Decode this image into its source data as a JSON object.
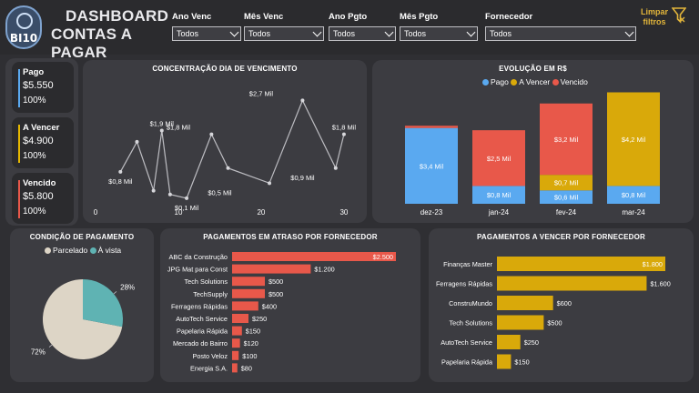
{
  "header": {
    "logo_text": "BI10",
    "title_line1": "DASHBOARD",
    "title_line2": "CONTAS A PAGAR",
    "clear_label": "Limpar filtros"
  },
  "filters": [
    {
      "label": "Ano Venc",
      "value": "Todos"
    },
    {
      "label": "Mês Venc",
      "value": "Todos"
    },
    {
      "label": "Ano Pgto",
      "value": "Todos"
    },
    {
      "label": "Mês Pgto",
      "value": "Todos"
    },
    {
      "label": "Fornecedor",
      "value": "Todos"
    }
  ],
  "kpis": [
    {
      "title": "Pago",
      "value": "$5.550",
      "pct": "100%",
      "color": "#5aa9f0"
    },
    {
      "title": "A Vencer",
      "value": "$4.900",
      "pct": "100%",
      "color": "#e6b800"
    },
    {
      "title": "Vencido",
      "value": "$5.800",
      "pct": "100%",
      "color": "#e8584a"
    }
  ],
  "colors": {
    "pago": "#5aa9f0",
    "vencer": "#d9a90a",
    "vencido": "#e8584a",
    "parcelado": "#ddd5c6",
    "avista": "#5fb3b3"
  },
  "line_chart": {
    "title": "CONCENTRAÇÃO DIA DE VENCIMENTO",
    "chart_data": {
      "type": "line",
      "x": [
        3,
        5,
        7,
        8,
        9,
        11,
        14,
        16,
        21,
        25,
        29,
        30
      ],
      "values": [
        0.8,
        1.6,
        0.3,
        1.9,
        0.2,
        0.1,
        1.8,
        0.9,
        0.5,
        2.7,
        0.9,
        1.8
      ],
      "xticks": [
        "0",
        "10",
        "20",
        "30"
      ],
      "labels": [
        {
          "x": 3,
          "y": 0.8,
          "text": "$0,8 Mil"
        },
        {
          "x": 8,
          "y": 1.9,
          "text": "$1,9 Mil"
        },
        {
          "x": 11,
          "y": 0.1,
          "text": "$0,1 Mil"
        },
        {
          "x": 10,
          "y": 1.8,
          "text": "$1,8 Mil"
        },
        {
          "x": 15,
          "y": 0.5,
          "text": "$0,5 Mil"
        },
        {
          "x": 20,
          "y": 2.7,
          "text": "$2,7 Mil"
        },
        {
          "x": 25,
          "y": 0.9,
          "text": "$0,9 Mil"
        },
        {
          "x": 30,
          "y": 1.8,
          "text": "$1,8 Mil"
        }
      ]
    }
  },
  "stacked_chart": {
    "title": "EVOLUÇÃO EM R$",
    "legend": [
      "Pago",
      "A Vencer",
      "Vencido"
    ],
    "chart_data": {
      "type": "bar",
      "stacked": true,
      "categories": [
        "dez-23",
        "jan-24",
        "fev-24",
        "mar-24"
      ],
      "series": [
        {
          "name": "Pago",
          "values": [
            3.4,
            0.8,
            0.6,
            0.8
          ],
          "labels": [
            "$3,4 Mil",
            "$0,8 Mil",
            "$0,6 Mil",
            "$0,8 Mil"
          ]
        },
        {
          "name": "A Vencer",
          "values": [
            0,
            0,
            0.7,
            4.2
          ],
          "labels": [
            "",
            "",
            "$0,7 Mil",
            "$4,2 Mil"
          ]
        },
        {
          "name": "Vencido",
          "values": [
            0.1,
            2.5,
            3.2,
            0
          ],
          "labels": [
            "",
            "$2,5 Mil",
            "$3,2 Mil",
            ""
          ]
        }
      ]
    }
  },
  "pie_chart": {
    "title": "CONDIÇÃO DE PAGAMENTO",
    "legend": [
      "Parcelado",
      "À vista"
    ],
    "chart_data": {
      "type": "pie",
      "categories": [
        "Parcelado",
        "À vista"
      ],
      "values": [
        72,
        28
      ],
      "labels": [
        "72%",
        "28%"
      ]
    }
  },
  "overdue_chart": {
    "title": "PAGAMENTOS EM ATRASO POR FORNECEDOR",
    "chart_data": {
      "type": "bar",
      "orientation": "horizontal",
      "categories": [
        "ABC da Construção",
        "JPG Mat para Const",
        "Tech Solutions",
        "TechSupply",
        "Ferragens Rápidas",
        "AutoTech Service",
        "Papelaria Rápida",
        "Mercado do Bairro",
        "Posto Veloz",
        "Energia S.A."
      ],
      "values": [
        2500,
        1200,
        500,
        500,
        400,
        250,
        150,
        120,
        100,
        80
      ],
      "labels": [
        "$2.500",
        "$1.200",
        "$500",
        "$500",
        "$400",
        "$250",
        "$150",
        "$120",
        "$100",
        "$80"
      ]
    }
  },
  "due_chart": {
    "title": "PAGAMENTOS A VENCER POR FORNECEDOR",
    "chart_data": {
      "type": "bar",
      "orientation": "horizontal",
      "categories": [
        "Finanças Master",
        "Ferragens Rápidas",
        "ConstruMundo",
        "Tech Solutions",
        "AutoTech Service",
        "Papelaria Rápida"
      ],
      "values": [
        1800,
        1600,
        600,
        500,
        250,
        150
      ],
      "labels": [
        "$1.800",
        "$1.600",
        "$600",
        "$500",
        "$250",
        "$150"
      ]
    }
  }
}
